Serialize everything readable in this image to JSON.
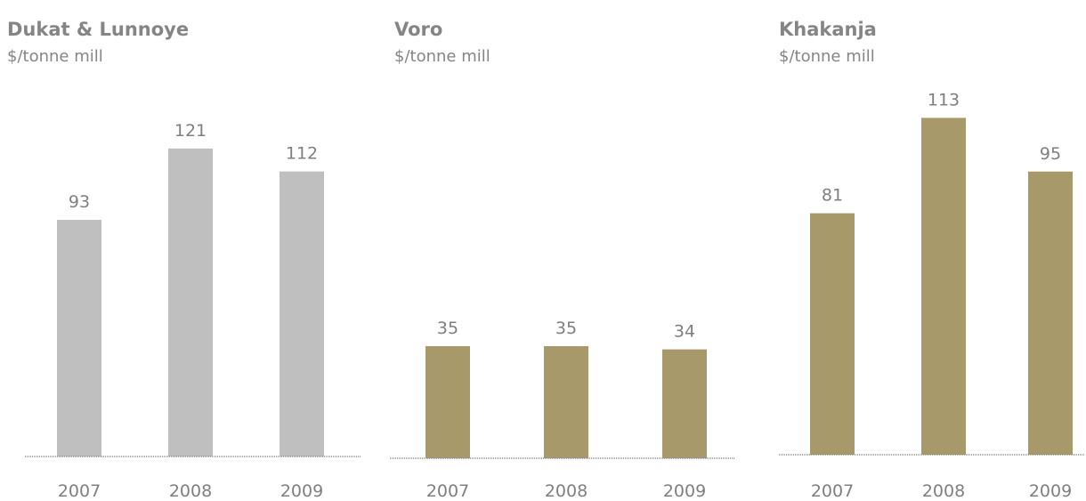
{
  "chart_data": [
    {
      "type": "bar",
      "title": "Dukat & Lunnoye",
      "subtitle": "$/tonne mill",
      "categories": [
        "2007",
        "2008",
        "2009"
      ],
      "values": [
        93,
        121,
        112
      ],
      "color": "#bfbfbf"
    },
    {
      "type": "bar",
      "title": "Voro",
      "subtitle": "$/tonne mill",
      "categories": [
        "2007",
        "2008",
        "2009"
      ],
      "values": [
        35,
        35,
        34
      ],
      "color": "#a8996b"
    },
    {
      "type": "bar",
      "title": "Khakanja",
      "subtitle": "$/tonne mill",
      "categories": [
        "2007",
        "2008",
        "2009"
      ],
      "values": [
        81,
        113,
        95
      ],
      "color": "#a8996b"
    }
  ]
}
